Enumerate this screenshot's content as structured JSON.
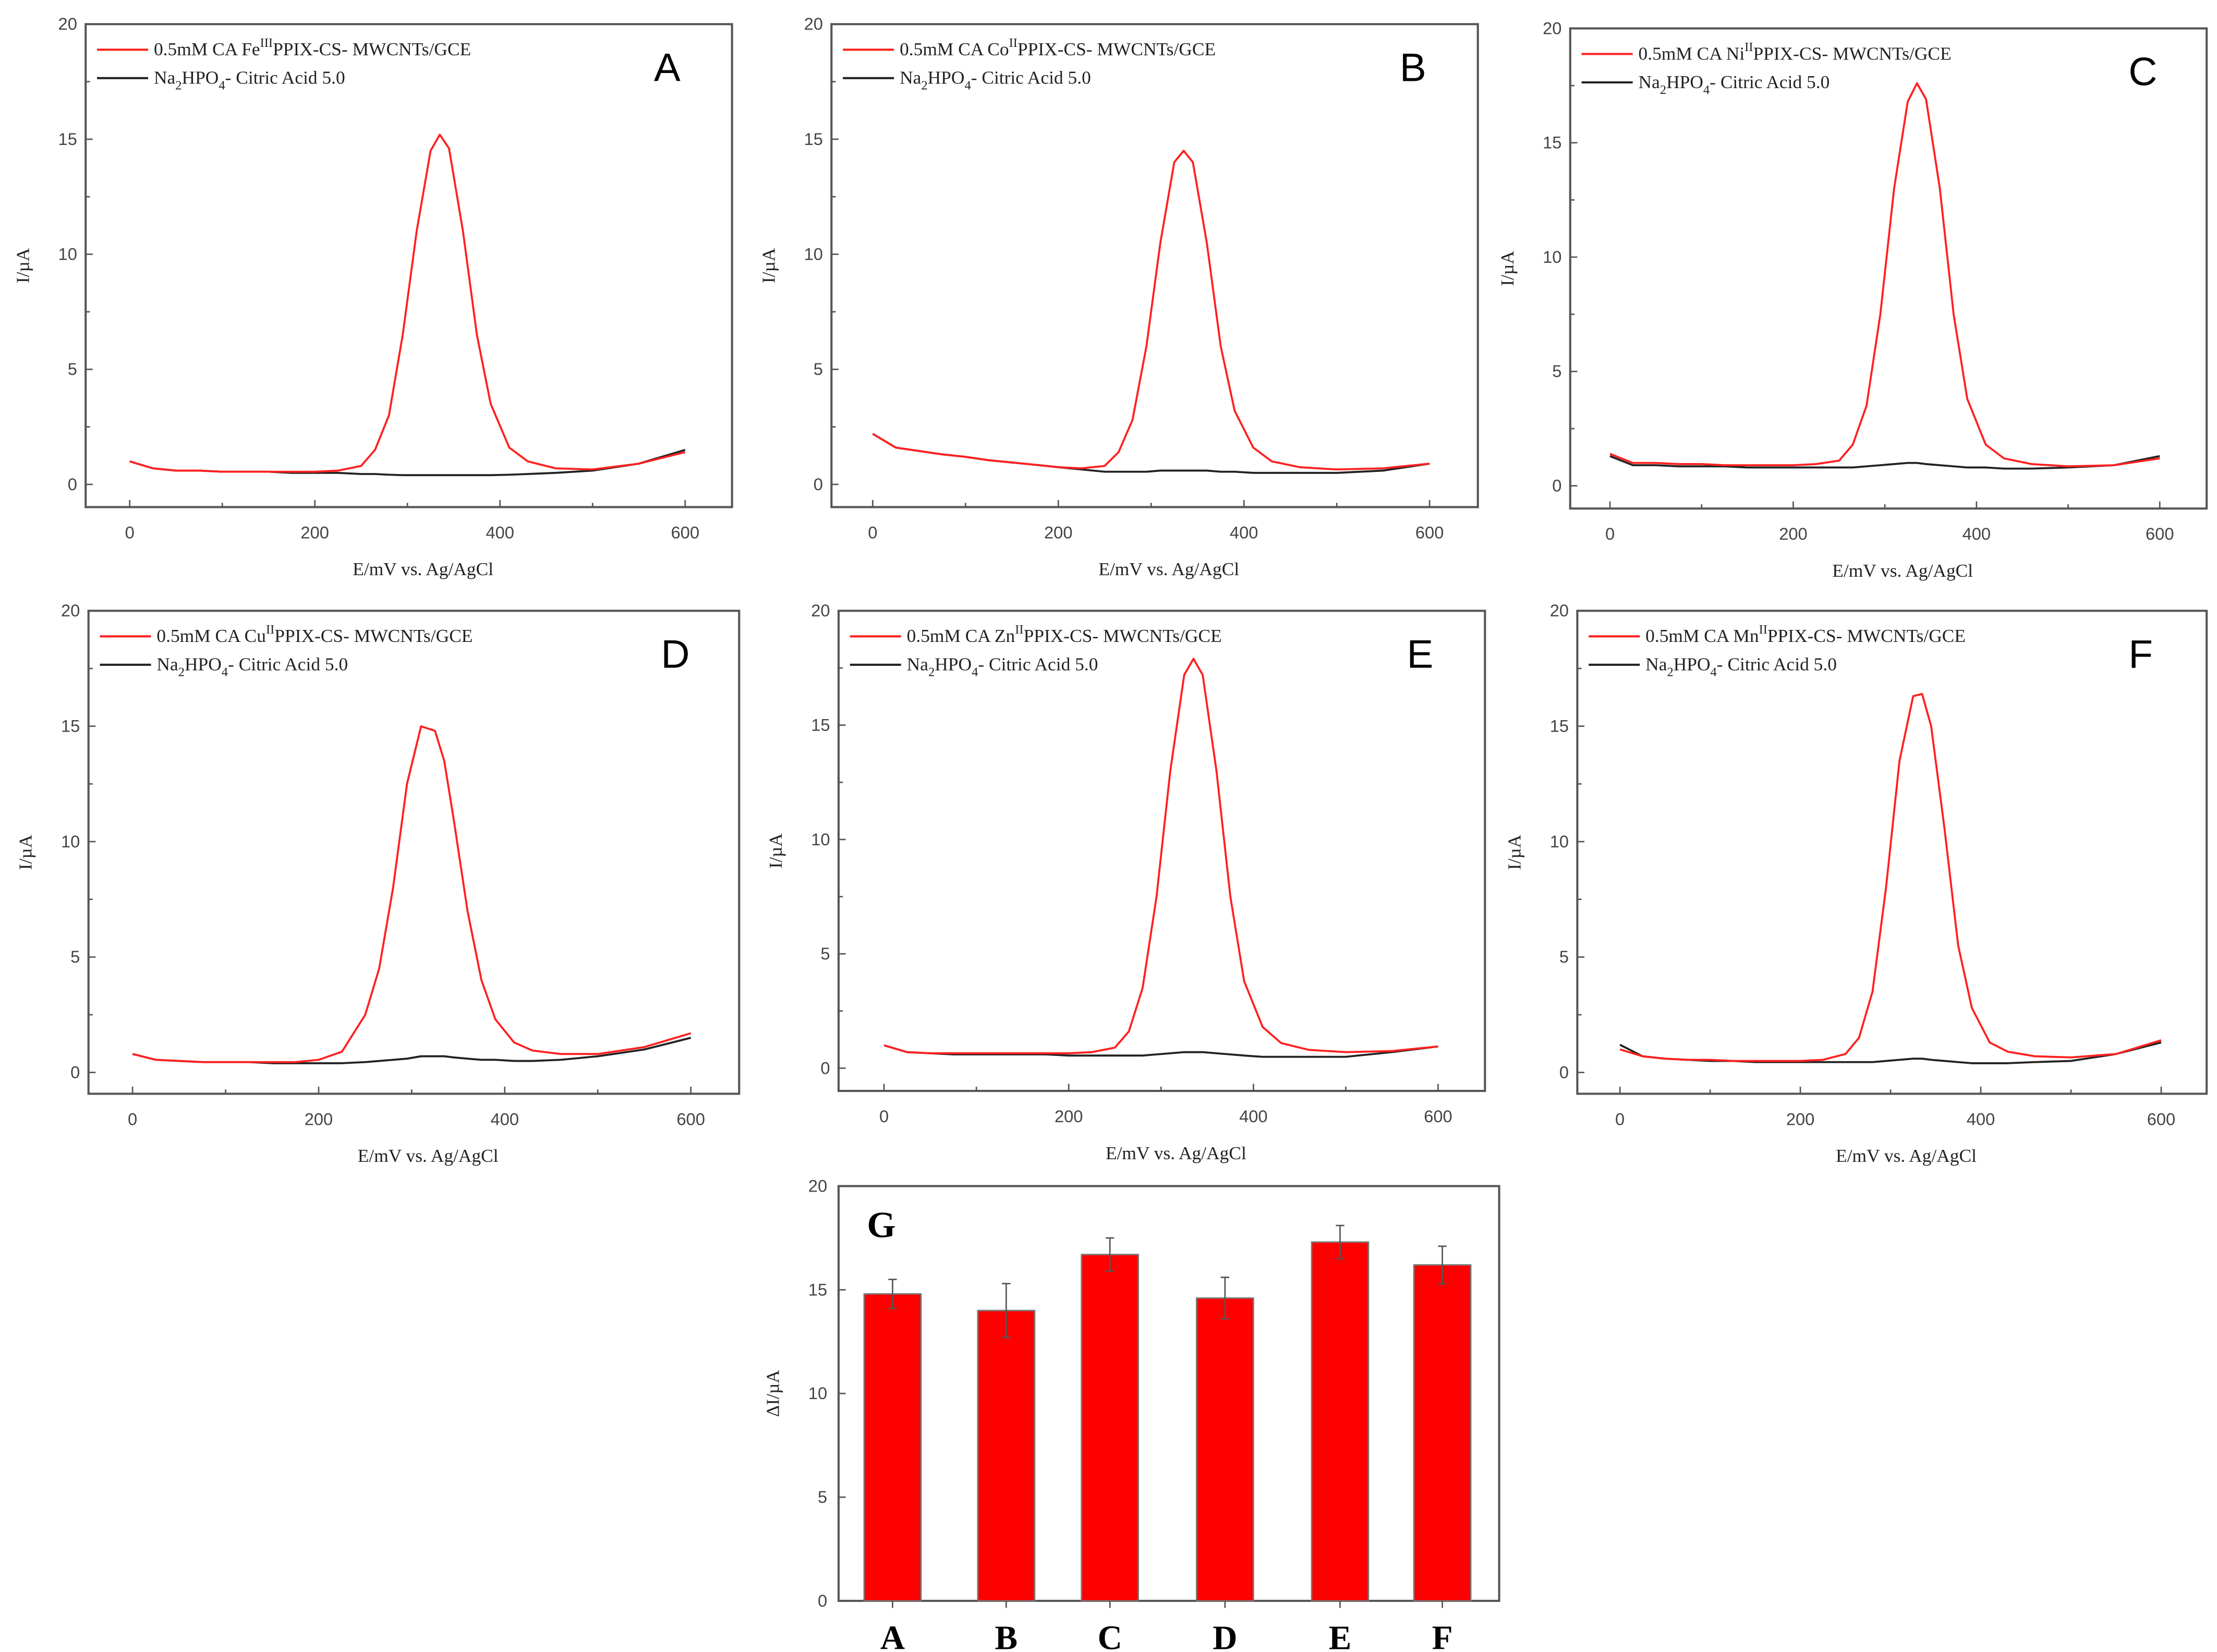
{
  "colors": {
    "sample": "#ff2020",
    "blank": "#222222",
    "bar": "#ff0000",
    "frame": "#555555"
  },
  "chart_data": [
    {
      "type": "line",
      "panel": "A",
      "xlabel": "E/mV vs. Ag/AgCl",
      "ylabel": "I/µA",
      "xlim": [
        -50,
        650
      ],
      "ylim": [
        -1,
        20
      ],
      "xticks": [
        "0",
        "200",
        "400",
        "600"
      ],
      "yticks": [
        "0",
        "5",
        "10",
        "15",
        "20"
      ],
      "legend": {
        "placement": "top-left",
        "red": {
          "prefix": "0.5mM CA  ",
          "metal": "Fe",
          "ox": "III",
          "suffix": "PPIX-CS- MWCNTs/GCE"
        },
        "black": {
          "a": "Na",
          "b": "2",
          "c": "HPO",
          "d": "4",
          "e": "- Citric Acid  5.0"
        }
      },
      "x": [
        0,
        25,
        50,
        75,
        100,
        125,
        150,
        175,
        200,
        225,
        250,
        265,
        280,
        295,
        310,
        325,
        335,
        345,
        360,
        375,
        390,
        410,
        430,
        460,
        500,
        550,
        600
      ],
      "series": [
        {
          "name": "sample",
          "values": [
            1.0,
            0.7,
            0.6,
            0.6,
            0.55,
            0.55,
            0.55,
            0.55,
            0.55,
            0.6,
            0.8,
            1.5,
            3.0,
            6.5,
            11.0,
            14.5,
            15.2,
            14.6,
            11.0,
            6.5,
            3.5,
            1.6,
            1.0,
            0.7,
            0.65,
            0.9,
            1.4
          ]
        },
        {
          "name": "blank",
          "values": [
            1.0,
            0.7,
            0.6,
            0.6,
            0.55,
            0.55,
            0.55,
            0.5,
            0.5,
            0.5,
            0.45,
            0.45,
            0.42,
            0.4,
            0.4,
            0.4,
            0.4,
            0.4,
            0.4,
            0.4,
            0.4,
            0.42,
            0.45,
            0.5,
            0.6,
            0.9,
            1.5
          ]
        }
      ]
    },
    {
      "type": "line",
      "panel": "B",
      "xlabel": "E/mV vs. Ag/AgCl",
      "ylabel": "I/µA",
      "xlim": [
        -50,
        650
      ],
      "ylim": [
        -1,
        20
      ],
      "xticks": [
        "0",
        "200",
        "400",
        "600"
      ],
      "yticks": [
        "0",
        "5",
        "10",
        "15",
        "20"
      ],
      "legend": {
        "placement": "top-left",
        "red": {
          "prefix": "0.5mM CA  ",
          "metal": "Co",
          "ox": "II",
          "suffix": "PPIX-CS- MWCNTs/GCE"
        },
        "black": {
          "a": "Na",
          "b": "2",
          "c": "HPO",
          "d": "4",
          "e": "- Citric Acid  5.0"
        }
      },
      "x": [
        0,
        25,
        50,
        75,
        100,
        125,
        150,
        175,
        200,
        225,
        250,
        265,
        280,
        295,
        310,
        325,
        335,
        345,
        360,
        375,
        390,
        410,
        430,
        460,
        500,
        550,
        600
      ],
      "series": [
        {
          "name": "sample",
          "values": [
            2.2,
            1.6,
            1.45,
            1.3,
            1.2,
            1.05,
            0.95,
            0.85,
            0.75,
            0.7,
            0.8,
            1.4,
            2.8,
            6.0,
            10.5,
            14.0,
            14.5,
            14.0,
            10.5,
            6.0,
            3.2,
            1.6,
            1.0,
            0.75,
            0.65,
            0.7,
            0.9
          ]
        },
        {
          "name": "blank",
          "values": [
            2.2,
            1.6,
            1.45,
            1.3,
            1.2,
            1.05,
            0.95,
            0.85,
            0.75,
            0.65,
            0.55,
            0.55,
            0.55,
            0.55,
            0.6,
            0.6,
            0.6,
            0.6,
            0.6,
            0.55,
            0.55,
            0.5,
            0.5,
            0.5,
            0.5,
            0.6,
            0.9
          ]
        }
      ]
    },
    {
      "type": "line",
      "panel": "C",
      "xlabel": "E/mV vs. Ag/AgCl",
      "ylabel": "I/µA",
      "xlim": [
        -50,
        650
      ],
      "ylim": [
        -1,
        20
      ],
      "xticks": [
        "0",
        "200",
        "400",
        "600"
      ],
      "yticks": [
        "0",
        "5",
        "10",
        "15",
        "20"
      ],
      "legend": {
        "placement": "top-left",
        "red": {
          "prefix": "0.5mM CA  ",
          "metal": "Ni",
          "ox": "II",
          "suffix": "PPIX-CS- MWCNTs/GCE"
        },
        "black": {
          "a": "Na",
          "b": "2",
          "c": "HPO",
          "d": "4",
          "e": "- Citric Acid  5.0"
        }
      },
      "x": [
        0,
        25,
        50,
        75,
        100,
        125,
        150,
        175,
        200,
        225,
        250,
        265,
        280,
        295,
        310,
        325,
        335,
        345,
        360,
        375,
        390,
        410,
        430,
        460,
        500,
        550,
        600
      ],
      "series": [
        {
          "name": "sample",
          "values": [
            1.4,
            1.0,
            1.0,
            0.95,
            0.95,
            0.9,
            0.9,
            0.9,
            0.9,
            0.95,
            1.1,
            1.8,
            3.5,
            7.5,
            13.0,
            16.8,
            17.6,
            16.9,
            13.0,
            7.5,
            3.8,
            1.8,
            1.2,
            0.95,
            0.85,
            0.9,
            1.2
          ]
        },
        {
          "name": "blank",
          "values": [
            1.3,
            0.9,
            0.9,
            0.85,
            0.85,
            0.85,
            0.8,
            0.8,
            0.8,
            0.8,
            0.8,
            0.8,
            0.85,
            0.9,
            0.95,
            1.0,
            1.0,
            0.95,
            0.9,
            0.85,
            0.8,
            0.8,
            0.75,
            0.75,
            0.8,
            0.9,
            1.3
          ]
        }
      ]
    },
    {
      "type": "line",
      "panel": "D",
      "xlabel": "E/mV vs. Ag/AgCl",
      "ylabel": "I/µA",
      "xlim": [
        -50,
        650
      ],
      "ylim": [
        -1,
        20
      ],
      "xticks": [
        "0",
        "200",
        "400",
        "600"
      ],
      "yticks": [
        "0",
        "5",
        "10",
        "15",
        "20"
      ],
      "legend": {
        "placement": "top-left",
        "red": {
          "prefix": "0.5mM CA  ",
          "metal": "Cu",
          "ox": "II",
          "suffix": "PPIX-CS- MWCNTs/GCE"
        },
        "black": {
          "a": "Na",
          "b": "2",
          "c": "HPO",
          "d": "4",
          "e": "- Citric Acid  5.0"
        }
      },
      "x": [
        0,
        25,
        50,
        75,
        100,
        125,
        150,
        175,
        200,
        225,
        250,
        265,
        280,
        295,
        310,
        325,
        335,
        345,
        360,
        375,
        390,
        410,
        430,
        460,
        500,
        550,
        600
      ],
      "series": [
        {
          "name": "sample",
          "values": [
            0.8,
            0.55,
            0.5,
            0.45,
            0.45,
            0.45,
            0.45,
            0.45,
            0.55,
            0.9,
            2.5,
            4.5,
            8.0,
            12.5,
            15.0,
            14.8,
            13.5,
            11.0,
            7.0,
            4.0,
            2.3,
            1.3,
            0.95,
            0.8,
            0.8,
            1.1,
            1.7
          ]
        },
        {
          "name": "blank",
          "values": [
            0.8,
            0.55,
            0.5,
            0.45,
            0.45,
            0.45,
            0.4,
            0.4,
            0.4,
            0.4,
            0.45,
            0.5,
            0.55,
            0.6,
            0.7,
            0.7,
            0.7,
            0.65,
            0.6,
            0.55,
            0.55,
            0.5,
            0.5,
            0.55,
            0.7,
            1.0,
            1.5
          ]
        }
      ]
    },
    {
      "type": "line",
      "panel": "E",
      "xlabel": "E/mV vs. Ag/AgCl",
      "ylabel": "I/µA",
      "xlim": [
        -50,
        650
      ],
      "ylim": [
        -1,
        20
      ],
      "xticks": [
        "0",
        "200",
        "400",
        "600"
      ],
      "yticks": [
        "0",
        "5",
        "10",
        "15",
        "20"
      ],
      "legend": {
        "placement": "top-left",
        "red": {
          "prefix": "0.5mM CA ",
          "metal": "Zn",
          "ox": "II",
          "suffix": "PPIX-CS- MWCNTs/GCE"
        },
        "black": {
          "a": "Na",
          "b": "2",
          "c": "HPO",
          "d": "4",
          "e": "- Citric Acid  5.0"
        }
      },
      "x": [
        0,
        25,
        50,
        75,
        100,
        125,
        150,
        175,
        200,
        225,
        250,
        265,
        280,
        295,
        310,
        325,
        335,
        345,
        360,
        375,
        390,
        410,
        430,
        460,
        500,
        550,
        600
      ],
      "series": [
        {
          "name": "sample",
          "values": [
            1.0,
            0.7,
            0.65,
            0.65,
            0.65,
            0.65,
            0.65,
            0.65,
            0.65,
            0.7,
            0.9,
            1.6,
            3.5,
            7.5,
            13.0,
            17.2,
            17.9,
            17.2,
            13.0,
            7.5,
            3.8,
            1.8,
            1.1,
            0.8,
            0.7,
            0.75,
            0.95
          ]
        },
        {
          "name": "blank",
          "values": [
            1.0,
            0.7,
            0.65,
            0.6,
            0.6,
            0.6,
            0.6,
            0.6,
            0.55,
            0.55,
            0.55,
            0.55,
            0.55,
            0.6,
            0.65,
            0.7,
            0.7,
            0.7,
            0.65,
            0.6,
            0.55,
            0.5,
            0.5,
            0.5,
            0.5,
            0.7,
            0.95
          ]
        }
      ]
    },
    {
      "type": "line",
      "panel": "F",
      "xlabel": "E/mV vs. Ag/AgCl",
      "ylabel": "I/µA",
      "xlim": [
        -50,
        650
      ],
      "ylim": [
        -1,
        20
      ],
      "xticks": [
        "0",
        "200",
        "400",
        "600"
      ],
      "yticks": [
        "0",
        "5",
        "10",
        "15",
        "20"
      ],
      "legend": {
        "placement": "top-left",
        "red": {
          "prefix": "0.5mM CA  ",
          "metal": "Mn",
          "ox": "II",
          "suffix": "PPIX-CS- MWCNTs/GCE"
        },
        "black": {
          "a": "Na",
          "b": "2",
          "c": "HPO",
          "d": "4",
          "e": "- Citric Acid  5.0"
        }
      },
      "x": [
        0,
        25,
        50,
        75,
        100,
        125,
        150,
        175,
        200,
        225,
        250,
        265,
        280,
        295,
        310,
        325,
        335,
        345,
        360,
        375,
        390,
        410,
        430,
        460,
        500,
        550,
        600
      ],
      "series": [
        {
          "name": "sample",
          "values": [
            1.0,
            0.7,
            0.6,
            0.55,
            0.55,
            0.5,
            0.5,
            0.5,
            0.5,
            0.55,
            0.8,
            1.5,
            3.5,
            8.0,
            13.5,
            16.3,
            16.4,
            15.0,
            10.5,
            5.5,
            2.8,
            1.3,
            0.9,
            0.7,
            0.65,
            0.8,
            1.4
          ]
        },
        {
          "name": "blank",
          "values": [
            1.2,
            0.7,
            0.6,
            0.55,
            0.5,
            0.5,
            0.45,
            0.45,
            0.45,
            0.45,
            0.45,
            0.45,
            0.45,
            0.5,
            0.55,
            0.6,
            0.6,
            0.55,
            0.5,
            0.45,
            0.4,
            0.4,
            0.4,
            0.45,
            0.5,
            0.8,
            1.3
          ]
        }
      ]
    },
    {
      "type": "bar",
      "panel": "G",
      "ylabel": "ΔI/µA",
      "ylim": [
        0,
        20
      ],
      "yticks": [
        "0",
        "5",
        "10",
        "15",
        "20"
      ],
      "categories": [
        "A",
        "B",
        "C",
        "D",
        "E",
        "F"
      ],
      "values": [
        14.8,
        14.0,
        16.7,
        14.6,
        17.3,
        16.2
      ],
      "errors": [
        0.7,
        1.3,
        0.8,
        1.0,
        0.8,
        0.9
      ]
    }
  ]
}
